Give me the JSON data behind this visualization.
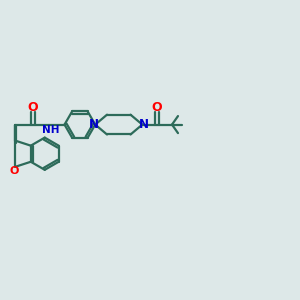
{
  "background_color": "#dde8e8",
  "bond_color": "#2d6b5a",
  "O_color": "#ff0000",
  "N_color": "#0000cc",
  "line_width": 1.6,
  "figsize": [
    3.0,
    3.0
  ],
  "dpi": 100,
  "xlim": [
    0,
    12
  ],
  "ylim": [
    2,
    8
  ]
}
